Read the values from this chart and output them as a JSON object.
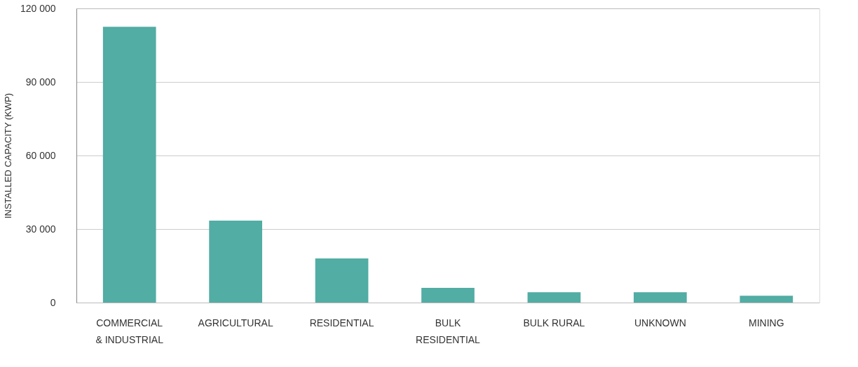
{
  "chart_data": {
    "type": "bar",
    "ylabel": "INSTALLED CAPACITY (KWP)",
    "categories": [
      "COMMERCIAL\n& INDUSTRIAL",
      "AGRICULTURAL",
      "RESIDENTIAL",
      "BULK\nRESIDENTIAL",
      "BULK RURAL",
      "UNKNOWN",
      "MINING"
    ],
    "values": [
      112500,
      33400,
      18000,
      6000,
      4200,
      4200,
      2800
    ],
    "color": "#52ada4",
    "ylim": [
      0,
      120000
    ],
    "yticks": [
      {
        "value": 0,
        "label": "0"
      },
      {
        "value": 30000,
        "label": "30 000"
      },
      {
        "value": 60000,
        "label": "60 000"
      },
      {
        "value": 90000,
        "label": "90 000"
      },
      {
        "value": 120000,
        "label": "120 000"
      }
    ],
    "grid": "y"
  }
}
